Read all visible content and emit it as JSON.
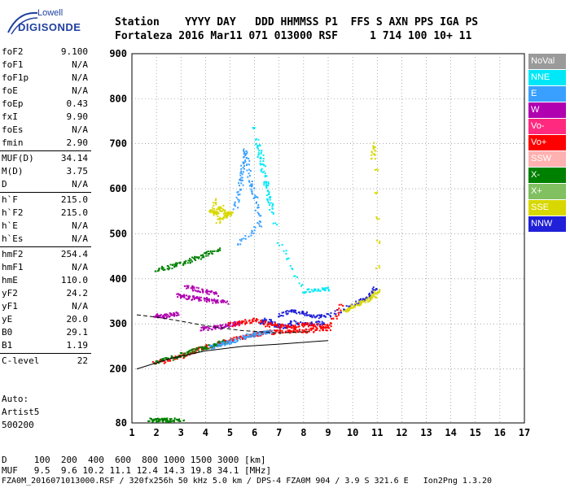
{
  "logo": {
    "line1": "Lowell",
    "line2": "DIGISONDE"
  },
  "header": {
    "line1": "Station    YYYY DAY   DDD HHMMSS P1  FFS S AXN PPS IGA PS",
    "line2": "Fortaleza 2016 Mar11 071 013000 RSF     1 714 100 10+ 11"
  },
  "params": [
    [
      {
        "label": "foF2",
        "value": "9.100"
      },
      {
        "label": "foF1",
        "value": "N/A"
      },
      {
        "label": "foF1p",
        "value": "N/A"
      },
      {
        "label": "foE",
        "value": "N/A"
      },
      {
        "label": "foEp",
        "value": "0.43"
      },
      {
        "label": "fxI",
        "value": "9.90"
      },
      {
        "label": "foEs",
        "value": "N/A"
      },
      {
        "label": "fmin",
        "value": "2.90"
      }
    ],
    [
      {
        "label": "MUF(D)",
        "value": "34.14"
      },
      {
        "label": "M(D)",
        "value": "3.75"
      },
      {
        "label": "D",
        "value": "N/A"
      }
    ],
    [
      {
        "label": "h`F",
        "value": "215.0"
      },
      {
        "label": "h`F2",
        "value": "215.0"
      },
      {
        "label": "h`E",
        "value": "N/A"
      },
      {
        "label": "h`Es",
        "value": "N/A"
      }
    ],
    [
      {
        "label": "hmF2",
        "value": "254.4"
      },
      {
        "label": "hmF1",
        "value": "N/A"
      },
      {
        "label": "hmE",
        "value": "110.0"
      },
      {
        "label": "yF2",
        "value": "24.2"
      },
      {
        "label": "yF1",
        "value": "N/A"
      },
      {
        "label": "yE",
        "value": "20.0"
      },
      {
        "label": "B0",
        "value": "29.1"
      },
      {
        "label": "B1",
        "value": "1.19"
      }
    ],
    [
      {
        "label": "C-level",
        "value": "22"
      }
    ]
  ],
  "auto": {
    "line1": "Auto:",
    "line2": "Artist5",
    "line3": "500200"
  },
  "footer": {
    "line1": "D     100  200  400  600  800 1000 1500 3000 [km]",
    "line2": "MUF   9.5  9.6 10.2 11.1 12.4 14.3 19.8 34.1 [MHz]",
    "line3": "FZA0M_2016071013000.RSF / 320fx256h 50 kHz 5.0 km / DPS-4 FZA0M 904 / 3.9 S 321.6 E   Ion2Png 1.3.20"
  },
  "legend": [
    {
      "label": "NoVal",
      "color": "#9a9a9a"
    },
    {
      "label": "NNE",
      "color": "#00e8f8"
    },
    {
      "label": "E",
      "color": "#3aa0ff"
    },
    {
      "label": "W",
      "color": "#b000b0"
    },
    {
      "label": "Vo-",
      "color": "#ff2a80"
    },
    {
      "label": "Vo+",
      "color": "#ff0000"
    },
    {
      "label": "SSW",
      "color": "#ffb0b0"
    },
    {
      "label": "X-",
      "color": "#008000"
    },
    {
      "label": "X+",
      "color": "#80c060"
    },
    {
      "label": "SSE",
      "color": "#d8d800"
    },
    {
      "label": "NNW",
      "color": "#2020d8"
    }
  ],
  "chart_data": {
    "type": "scatter",
    "xlim": [
      1,
      17
    ],
    "ylim": [
      80,
      900
    ],
    "x_ticks": [
      "1",
      "2",
      "3",
      "4",
      "5",
      "6",
      "7",
      "8",
      "9",
      "10",
      "11",
      "12",
      "13",
      "14",
      "15",
      "16",
      "17"
    ],
    "y_ticks": [
      "80",
      "200",
      "300",
      "400",
      "500",
      "600",
      "700",
      "800",
      "900"
    ],
    "grid": true,
    "traces": [
      {
        "name": "o-trace",
        "color": "#ff0000",
        "points": [
          [
            1.9,
            215
          ],
          [
            2.5,
            222
          ],
          [
            3,
            230
          ],
          [
            3.5,
            240
          ],
          [
            4,
            250
          ],
          [
            4.5,
            258
          ],
          [
            5,
            265
          ],
          [
            5.5,
            272
          ],
          [
            6,
            278
          ],
          [
            6.5,
            282
          ],
          [
            7,
            285
          ],
          [
            7.5,
            285
          ],
          [
            8,
            286
          ],
          [
            8.5,
            288
          ],
          [
            9,
            292
          ]
        ]
      },
      {
        "name": "x-trace",
        "color": "#008000",
        "points": [
          [
            1.9,
            216
          ],
          [
            2.5,
            224
          ],
          [
            3,
            233
          ],
          [
            3.5,
            242
          ],
          [
            4,
            250
          ],
          [
            4.4,
            255
          ],
          [
            4.8,
            262
          ]
        ]
      },
      {
        "name": "e-trace",
        "color": "#3aa0ff",
        "points": [
          [
            4.2,
            250
          ],
          [
            4.6,
            256
          ],
          [
            5,
            262
          ],
          [
            5.4,
            270
          ],
          [
            5.8,
            276
          ],
          [
            6.2,
            281
          ],
          [
            6.6,
            284
          ]
        ]
      },
      {
        "name": "w-oblique",
        "color": "#b000b0",
        "points": [
          [
            3.8,
            290
          ],
          [
            4.2,
            292
          ],
          [
            4.6,
            295
          ],
          [
            5,
            300
          ],
          [
            5.4,
            305
          ]
        ]
      },
      {
        "name": "w-trace-1",
        "color": "#b000b0",
        "points": [
          [
            2.9,
            365
          ],
          [
            3.2,
            360
          ],
          [
            3.6,
            358
          ],
          [
            4,
            355
          ],
          [
            4.4,
            352
          ],
          [
            4.8,
            350
          ]
        ]
      },
      {
        "name": "w-trace-2",
        "color": "#b000b0",
        "points": [
          [
            3.2,
            385
          ],
          [
            3.6,
            378
          ],
          [
            4,
            372
          ],
          [
            4.4,
            368
          ]
        ]
      },
      {
        "name": "oblique-low",
        "color": "#b000b0",
        "points": [
          [
            1.9,
            320
          ],
          [
            2.2,
            318
          ],
          [
            2.5,
            320
          ],
          [
            2.8,
            325
          ]
        ]
      },
      {
        "name": "oblique-high",
        "color": "#008000",
        "points": [
          [
            2,
            422
          ],
          [
            2.5,
            428
          ],
          [
            3,
            436
          ],
          [
            3.5,
            445
          ],
          [
            4,
            455
          ],
          [
            4.5,
            468
          ]
        ]
      },
      {
        "name": "sse-blob",
        "color": "#d8d800",
        "points": [
          [
            4.2,
            555
          ],
          [
            4.4,
            545
          ],
          [
            4.6,
            560
          ],
          [
            4.8,
            540
          ],
          [
            5,
            550
          ],
          [
            4.5,
            530
          ],
          [
            4.3,
            575
          ]
        ]
      },
      {
        "name": "spread-blue",
        "color": "#3aa0ff",
        "points": [
          [
            5.2,
            560
          ],
          [
            5.4,
            610
          ],
          [
            5.5,
            650
          ],
          [
            5.6,
            690
          ],
          [
            5.8,
            620
          ],
          [
            6,
            580
          ],
          [
            6.2,
            520
          ],
          [
            5.3,
            480
          ]
        ]
      },
      {
        "name": "spread-cyan",
        "color": "#00e8f8",
        "points": [
          [
            6.1,
            700
          ],
          [
            6.3,
            660
          ],
          [
            6.5,
            600
          ],
          [
            6.7,
            550
          ],
          [
            5.9,
            740
          ],
          [
            7,
            480
          ],
          [
            8,
            372
          ],
          [
            8.5,
            378
          ],
          [
            9,
            380
          ]
        ]
      },
      {
        "name": "spread-nnw",
        "color": "#2020d8",
        "points": [
          [
            7,
            320
          ],
          [
            7.5,
            330
          ],
          [
            8,
            325
          ],
          [
            8.5,
            318
          ],
          [
            9,
            322
          ],
          [
            10.2,
            350
          ],
          [
            10.6,
            360
          ],
          [
            10.9,
            380
          ]
        ]
      },
      {
        "name": "high-freq",
        "color": "#d8d800",
        "points": [
          [
            9.7,
            330
          ],
          [
            10,
            340
          ],
          [
            10.4,
            350
          ],
          [
            10.8,
            360
          ],
          [
            11,
            375
          ],
          [
            10.9,
            700
          ],
          [
            10.8,
            670
          ]
        ]
      },
      {
        "name": "es-low",
        "color": "#008000",
        "points": [
          [
            1.7,
            88
          ],
          [
            2,
            88
          ],
          [
            2.3,
            88
          ],
          [
            2.6,
            88
          ],
          [
            3,
            88
          ]
        ]
      },
      {
        "name": "nnw-mid",
        "color": "#2020d8",
        "points": [
          [
            6.2,
            305
          ],
          [
            6.5,
            310
          ],
          [
            6.8,
            300
          ],
          [
            7.2,
            295
          ],
          [
            7.6,
            305
          ],
          [
            8.2,
            300
          ],
          [
            8.8,
            305
          ]
        ]
      },
      {
        "name": "red-mid",
        "color": "#ff0000",
        "points": [
          [
            5,
            300
          ],
          [
            5.5,
            305
          ],
          [
            6,
            310
          ],
          [
            6.5,
            300
          ],
          [
            7,
            298
          ],
          [
            7.5,
            295
          ],
          [
            8,
            300
          ],
          [
            8.5,
            298
          ],
          [
            9,
            295
          ],
          [
            9.5,
            340
          ]
        ]
      }
    ],
    "model_lines": [
      {
        "name": "lower",
        "points": [
          [
            1.2,
            200
          ],
          [
            2.5,
            222
          ],
          [
            4,
            240
          ],
          [
            5.5,
            250
          ],
          [
            7,
            255
          ],
          [
            9,
            263
          ]
        ]
      },
      {
        "name": "upper-dashed",
        "points": [
          [
            1.2,
            320
          ],
          [
            2,
            315
          ],
          [
            3,
            306
          ],
          [
            4,
            296
          ],
          [
            5.5,
            285
          ],
          [
            7,
            280
          ],
          [
            8.3,
            283
          ]
        ]
      }
    ]
  }
}
